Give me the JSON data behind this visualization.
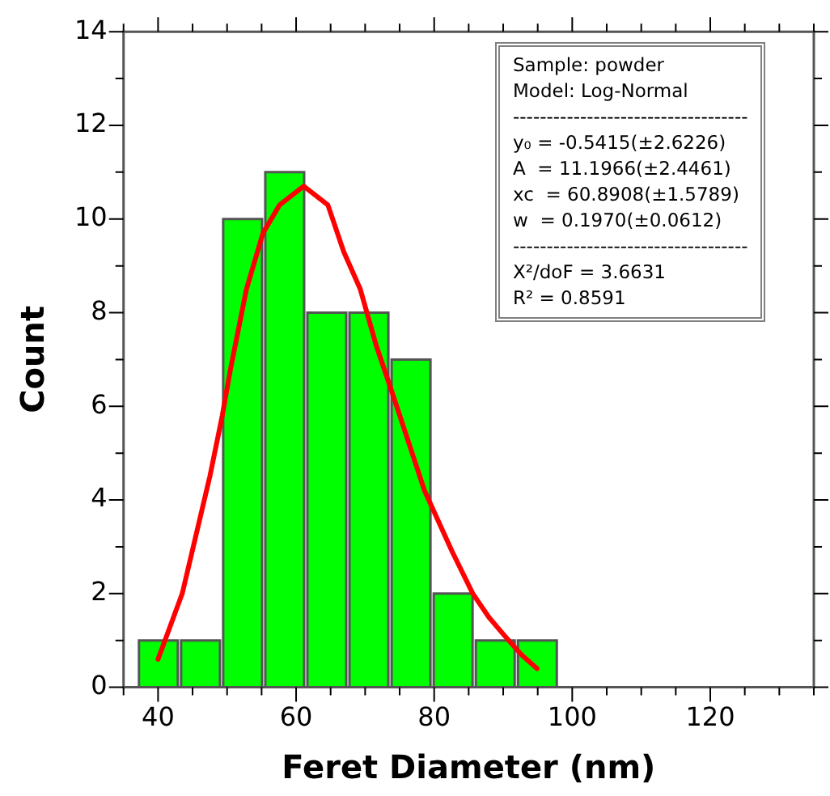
{
  "chart_data": {
    "type": "histogram",
    "xlabel": "Feret Diameter (nm)",
    "ylabel": "Count",
    "bins": [
      37,
      43.1,
      49.2,
      55.3,
      61.4,
      67.5,
      73.6,
      79.7,
      85.8,
      91.9,
      98
    ],
    "values": [
      1,
      1,
      10,
      11,
      8,
      8,
      7,
      2,
      1,
      1
    ],
    "color": "#00ff00",
    "series": [
      {
        "type": "line",
        "color": "#ff0000",
        "marker": "none",
        "x": [
          40,
          43.5,
          45.1,
          47.5,
          49.3,
          50.5,
          52.8,
          55.2,
          57.6,
          61.1,
          64.6,
          66.9,
          69.3,
          71.6,
          73.9,
          78.6,
          82.6,
          85.6,
          87.9,
          90.2,
          92.6,
          94.9
        ],
        "values": [
          0.6,
          2,
          3,
          4.5,
          5.8,
          6.8,
          8.5,
          9.7,
          10.3,
          10.7,
          10.3,
          9.3,
          8.5,
          7.3,
          6.3,
          4.2,
          2.9,
          2,
          1.5,
          1.1,
          0.7,
          0.4
        ]
      }
    ],
    "xlim": [
      35,
      135
    ],
    "xticks": [
      {
        "value": 35,
        "label": null
      },
      40,
      {
        "value": 45,
        "label": null
      },
      {
        "value": 50,
        "label": null
      },
      {
        "value": 55,
        "label": null
      },
      60,
      {
        "value": 65,
        "label": null
      },
      {
        "value": 70,
        "label": null
      },
      {
        "value": 75,
        "label": null
      },
      80,
      {
        "value": 85,
        "label": null
      },
      {
        "value": 90,
        "label": null
      },
      {
        "value": 95,
        "label": null
      },
      100,
      {
        "value": 105,
        "label": null
      },
      {
        "value": 110,
        "label": null
      },
      {
        "value": 115,
        "label": null
      },
      120,
      {
        "value": 125,
        "label": null
      },
      {
        "value": 130,
        "label": null
      },
      {
        "value": 135,
        "label": null
      }
    ],
    "ylim": [
      0,
      14
    ],
    "yticks": [
      0,
      {
        "value": 1,
        "label": null
      },
      2,
      {
        "value": 3,
        "label": null
      },
      4,
      {
        "value": 5,
        "label": null
      },
      6,
      {
        "value": 7,
        "label": null
      },
      8,
      {
        "value": 9,
        "label": null
      },
      10,
      {
        "value": 11,
        "label": null
      },
      12,
      {
        "value": 13,
        "label": null
      },
      14
    ],
    "grid": false,
    "legend": false,
    "annotations": [
      "Sample: powder",
      "Model: Log-Normal",
      "-----------------------------------",
      "y₀ = -0.5415(±2.6226)",
      "A  = 11.1966(±2.4461)",
      "xc  = 60.8908(±1.5789)",
      "w  = 0.1970(±0.0612)",
      "-----------------------------------",
      "X²/doF = 3.6631",
      "R² = 0.8591"
    ]
  }
}
